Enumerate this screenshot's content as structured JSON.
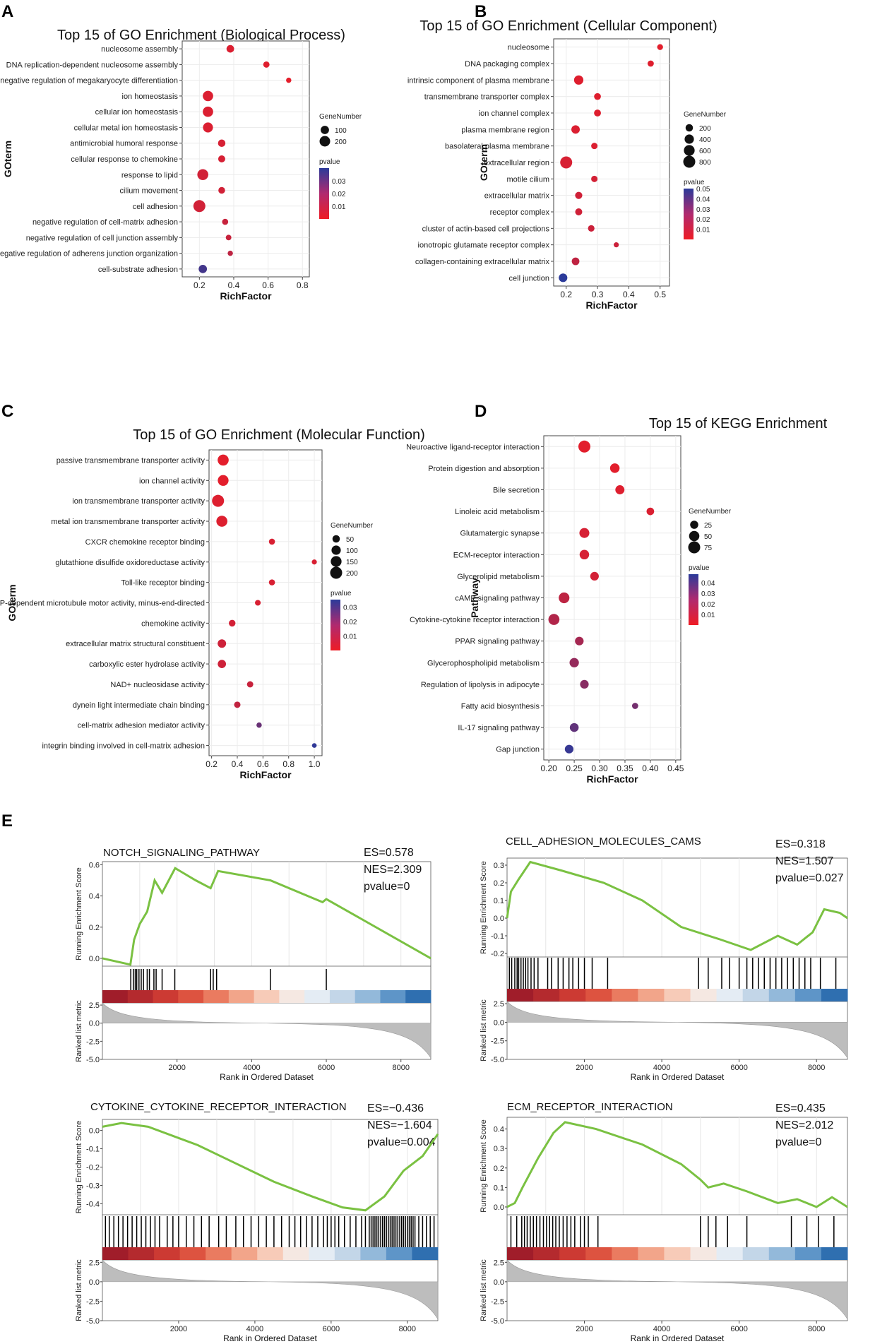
{
  "panel_labels": [
    "A",
    "B",
    "C",
    "D",
    "E"
  ],
  "dot_common": {
    "genenumber_title": "GeneNumber",
    "pvalue_title": "pvalue",
    "low_color": "#ee1c25",
    "high_color": "#2b3a9a"
  },
  "chart_data": [
    {
      "id": "A",
      "type": "scatter",
      "title": "Top 15 of GO Enrichment (Biological Process)",
      "xlabel": "RichFactor",
      "ylabel": "GOterm",
      "xlim": [
        0.1,
        0.84
      ],
      "xticks": [
        0.2,
        0.4,
        0.6,
        0.8
      ],
      "xtick_labels": [
        "0.2",
        "0.4",
        "0.6",
        "0.8"
      ],
      "size_legend": {
        "labels": [
          "100",
          "200"
        ],
        "values": [
          100,
          200
        ]
      },
      "color_legend": {
        "labels": [
          "0.03",
          "0.02",
          "0.01"
        ],
        "values": [
          0.03,
          0.02,
          0.01
        ],
        "min": 0.0,
        "max": 0.04
      },
      "terms": [
        "nucleosome assembly",
        "DNA replication-dependent nucleosome assembly",
        "negative regulation of megakaryocyte differentiation",
        "ion homeostasis",
        "cellular ion homeostasis",
        "cellular metal ion homeostasis",
        "antimicrobial humoral response",
        "cellular response to chemokine",
        "response to lipid",
        "cilium movement",
        "cell adhesion",
        "negative regulation of cell-matrix adhesion",
        "negative regulation of cell junction assembly",
        "negative regulation of adherens junction organization",
        "cell-substrate adhesion"
      ],
      "x": [
        0.38,
        0.59,
        0.72,
        0.25,
        0.25,
        0.25,
        0.33,
        0.33,
        0.22,
        0.33,
        0.2,
        0.35,
        0.37,
        0.38,
        0.22
      ],
      "gene_number": [
        75,
        40,
        20,
        190,
        190,
        170,
        70,
        60,
        220,
        50,
        280,
        35,
        25,
        20,
        100
      ],
      "pvalue": [
        0.004,
        0.003,
        0.002,
        0.004,
        0.004,
        0.004,
        0.005,
        0.005,
        0.006,
        0.006,
        0.006,
        0.008,
        0.008,
        0.01,
        0.035
      ]
    },
    {
      "id": "B",
      "type": "scatter",
      "title": "Top 15 of GO Enrichment (Cellular Component)",
      "xlabel": "RichFactor",
      "ylabel": "GOterm",
      "xlim": [
        0.16,
        0.53
      ],
      "xticks": [
        0.2,
        0.3,
        0.4,
        0.5
      ],
      "xtick_labels": [
        "0.2",
        "0.3",
        "0.4",
        "0.5"
      ],
      "size_legend": {
        "labels": [
          "200",
          "400",
          "600",
          "800"
        ],
        "values": [
          200,
          400,
          600,
          800
        ]
      },
      "color_legend": {
        "labels": [
          "0.05",
          "0.04",
          "0.03",
          "0.02",
          "0.01"
        ],
        "values": [
          0.05,
          0.04,
          0.03,
          0.02,
          0.01
        ],
        "min": 0.0,
        "max": 0.05
      },
      "terms": [
        "nucleosome",
        "DNA packaging complex",
        "intrinsic component of plasma membrane",
        "transmembrane transporter complex",
        "ion channel complex",
        "plasma membrane region",
        "basolateral plasma membrane",
        "extracellular region",
        "motile cilium",
        "extracellular matrix",
        "receptor complex",
        "cluster of actin-based cell projections",
        "ionotropic glutamate receptor complex",
        "collagen-containing extracellular matrix",
        "cell junction"
      ],
      "x": [
        0.5,
        0.47,
        0.24,
        0.3,
        0.3,
        0.23,
        0.29,
        0.2,
        0.29,
        0.24,
        0.24,
        0.28,
        0.36,
        0.23,
        0.19
      ],
      "gene_number": [
        90,
        110,
        400,
        150,
        160,
        300,
        120,
        800,
        120,
        180,
        170,
        130,
        50,
        220,
        310
      ],
      "pvalue": [
        0.003,
        0.004,
        0.004,
        0.004,
        0.004,
        0.005,
        0.005,
        0.006,
        0.007,
        0.008,
        0.008,
        0.009,
        0.009,
        0.012,
        0.05
      ]
    },
    {
      "id": "C",
      "type": "scatter",
      "title": "Top 15 of GO Enrichment (Molecular Function)",
      "xlabel": "RichFactor",
      "ylabel": "GOterm",
      "xlim": [
        0.18,
        1.06
      ],
      "xticks": [
        0.2,
        0.4,
        0.6,
        0.8,
        1.0
      ],
      "xtick_labels": [
        "0.2",
        "0.4",
        "0.6",
        "0.8",
        "1.0"
      ],
      "size_legend": {
        "labels": [
          "50",
          "100",
          "150",
          "200"
        ],
        "values": [
          50,
          100,
          150,
          200
        ]
      },
      "color_legend": {
        "labels": [
          "0.03",
          "0.02",
          "0.01"
        ],
        "values": [
          0.03,
          0.02,
          0.01
        ],
        "min": 0.0,
        "max": 0.035
      },
      "terms": [
        "passive transmembrane transporter activity",
        "ion channel activity",
        "ion transmembrane transporter activity",
        "metal ion transmembrane transporter activity",
        "CXCR chemokine receptor binding",
        "glutathione disulfide oxidoreductase activity",
        "Toll-like receptor binding",
        "ATP-dependent microtubule motor activity, minus-end-directed",
        "chemokine activity",
        "extracellular matrix structural constituent",
        "carboxylic ester hydrolase activity",
        "NAD+ nucleosidase activity",
        "dynein light intermediate chain binding",
        "cell-matrix adhesion mediator activity",
        "integrin binding involved in cell-matrix adhesion"
      ],
      "x": [
        0.29,
        0.29,
        0.25,
        0.28,
        0.67,
        1.0,
        0.67,
        0.56,
        0.36,
        0.28,
        0.28,
        0.5,
        0.4,
        0.57,
        1.0
      ],
      "gene_number": [
        160,
        150,
        200,
        160,
        25,
        12,
        25,
        20,
        35,
        75,
        70,
        28,
        30,
        15,
        8
      ],
      "pvalue": [
        0.002,
        0.002,
        0.003,
        0.003,
        0.004,
        0.004,
        0.004,
        0.004,
        0.005,
        0.006,
        0.006,
        0.007,
        0.008,
        0.024,
        0.034
      ]
    },
    {
      "id": "D",
      "type": "scatter",
      "title": "Top 15 of KEGG Enrichment",
      "xlabel": "RichFactor",
      "ylabel": "Pathway",
      "xlim": [
        0.19,
        0.46
      ],
      "xticks": [
        0.2,
        0.25,
        0.3,
        0.35,
        0.4,
        0.45
      ],
      "xtick_labels": [
        "0.20",
        "0.25",
        "0.30",
        "0.35",
        "0.40",
        "0.45"
      ],
      "size_legend": {
        "labels": [
          "25",
          "50",
          "75"
        ],
        "values": [
          25,
          50,
          75
        ]
      },
      "color_legend": {
        "labels": [
          "0.04",
          "0.03",
          "0.02",
          "0.01"
        ],
        "values": [
          0.04,
          0.03,
          0.02,
          0.01
        ],
        "min": 0.0,
        "max": 0.048
      },
      "terms": [
        "Neuroactive ligand-receptor interaction",
        "Protein digestion and absorption",
        "Bile secretion",
        "Linoleic acid metabolism",
        "Glutamatergic synapse",
        "ECM-receptor interaction",
        "Glycerolipid metabolism",
        "cAMP signaling pathway",
        "Cytokine-cytokine receptor interaction",
        "PPAR signaling pathway",
        "Glycerophospholipid metabolism",
        "Regulation of lipolysis in adipocyte",
        "Fatty acid biosynthesis",
        "IL-17 signaling pathway",
        "Gap junction"
      ],
      "x": [
        0.27,
        0.33,
        0.34,
        0.4,
        0.27,
        0.27,
        0.29,
        0.23,
        0.21,
        0.26,
        0.25,
        0.27,
        0.37,
        0.25,
        0.24
      ],
      "gene_number": [
        75,
        40,
        35,
        20,
        45,
        40,
        30,
        55,
        60,
        30,
        38,
        30,
        10,
        32,
        30
      ],
      "pvalue": [
        0.003,
        0.003,
        0.004,
        0.005,
        0.006,
        0.006,
        0.007,
        0.012,
        0.015,
        0.018,
        0.022,
        0.025,
        0.03,
        0.035,
        0.045
      ]
    }
  ],
  "gsea_common": {
    "es_axis_label": "Running Enrichment Score",
    "metric_axis_label": "Ranked list metric",
    "x_axis_label": "Rank in Ordered Dataset",
    "x_ticks": [
      2000,
      4000,
      6000,
      8000
    ],
    "x_tick_labels": [
      "2000",
      "4000",
      "6000",
      "8000"
    ],
    "x_max": 8800,
    "metric_ticks": [
      2.5,
      0.0,
      -2.5,
      -5.0
    ],
    "metric_tick_labels": [
      "2.5",
      "0.0",
      "-2.5",
      "-5.0"
    ],
    "line_color": "#7ac142",
    "hit_color": "#000000"
  },
  "gsea": [
    {
      "name": "NOTCH_SIGNALING_PATHWAY",
      "es_label": "ES=0.578",
      "nes_label": "NES=2.309",
      "pvalue_label": "pvalue=0",
      "es_ticks": [
        0.0,
        0.2,
        0.4,
        0.6
      ],
      "es_tick_labels": [
        "0.0",
        "0.2",
        "0.4",
        "0.6"
      ],
      "es_range": [
        -0.05,
        0.62
      ],
      "curve": [
        [
          0,
          0
        ],
        [
          750,
          -0.04
        ],
        [
          850,
          0.12
        ],
        [
          1000,
          0.22
        ],
        [
          1200,
          0.3
        ],
        [
          1400,
          0.5
        ],
        [
          1600,
          0.42
        ],
        [
          1950,
          0.578
        ],
        [
          2500,
          0.5
        ],
        [
          2900,
          0.45
        ],
        [
          3100,
          0.56
        ],
        [
          4500,
          0.5
        ],
        [
          5900,
          0.36
        ],
        [
          6000,
          0.38
        ],
        [
          8800,
          0.0
        ]
      ],
      "hits": [
        760,
        830,
        880,
        920,
        980,
        1040,
        1100,
        1200,
        1260,
        1380,
        1440,
        1600,
        1940,
        2900,
        2970,
        3060,
        4500,
        6000
      ]
    },
    {
      "name": "CELL_ADHESION_MOLECULES_CAMS",
      "es_label": "ES=0.318",
      "nes_label": "NES=1.507",
      "pvalue_label": "pvalue=0.027",
      "es_ticks": [
        0.3,
        0.2,
        0.1,
        0.0,
        -0.1,
        -0.2
      ],
      "es_tick_labels": [
        "0.3",
        "0.2",
        "0.1",
        "0.0",
        "-0.1",
        "-0.2"
      ],
      "es_range": [
        -0.22,
        0.34
      ],
      "curve": [
        [
          0,
          0
        ],
        [
          100,
          0.15
        ],
        [
          300,
          0.22
        ],
        [
          600,
          0.318
        ],
        [
          1400,
          0.27
        ],
        [
          2500,
          0.2
        ],
        [
          3500,
          0.1
        ],
        [
          4500,
          -0.05
        ],
        [
          5500,
          -0.12
        ],
        [
          6300,
          -0.18
        ],
        [
          7000,
          -0.1
        ],
        [
          7500,
          -0.15
        ],
        [
          7900,
          -0.08
        ],
        [
          8200,
          0.05
        ],
        [
          8600,
          0.03
        ],
        [
          8800,
          0.0
        ]
      ],
      "hits": [
        60,
        120,
        200,
        260,
        300,
        360,
        420,
        480,
        540,
        620,
        700,
        800,
        1050,
        1150,
        1320,
        1450,
        1600,
        1700,
        1850,
        2000,
        2200,
        2600,
        4950,
        5200,
        5550,
        5750,
        6000,
        6200,
        6350,
        6500,
        6650,
        6800,
        6950,
        7100,
        7250,
        7400,
        7550,
        7700,
        7850,
        8100,
        8500
      ]
    },
    {
      "name": "CYTOKINE_CYTOKINE_RECEPTOR_INTERACTION",
      "es_label": "ES=−0.436",
      "nes_label": "NES=−1.604",
      "pvalue_label": "pvalue=0.004",
      "es_ticks": [
        0.0,
        -0.1,
        -0.2,
        -0.3,
        -0.4
      ],
      "es_tick_labels": [
        "0.0",
        "-0.1",
        "-0.2",
        "-0.3",
        "-0.4"
      ],
      "es_range": [
        -0.46,
        0.06
      ],
      "curve": [
        [
          0,
          0.02
        ],
        [
          500,
          0.04
        ],
        [
          1200,
          0.02
        ],
        [
          2500,
          -0.08
        ],
        [
          3500,
          -0.18
        ],
        [
          4500,
          -0.28
        ],
        [
          5500,
          -0.36
        ],
        [
          6300,
          -0.42
        ],
        [
          6900,
          -0.436
        ],
        [
          7400,
          -0.36
        ],
        [
          7900,
          -0.22
        ],
        [
          8400,
          -0.14
        ],
        [
          8800,
          -0.02
        ]
      ],
      "hits": [
        80,
        180,
        300,
        420,
        540,
        660,
        780,
        900,
        1020,
        1140,
        1260,
        1380,
        1500,
        1700,
        1850,
        2000,
        2200,
        2400,
        2600,
        2800,
        3050,
        3250,
        3500,
        3700,
        3900,
        4100,
        4300,
        4500,
        4700,
        4900,
        5050,
        5200,
        5350,
        5500,
        5650,
        5800,
        5900,
        6000,
        6100,
        6200,
        6350,
        6500,
        6650,
        6800,
        6900,
        7000,
        7050,
        7100,
        7150,
        7200,
        7250,
        7300,
        7350,
        7400,
        7450,
        7500,
        7550,
        7600,
        7650,
        7700,
        7750,
        7800,
        7850,
        7900,
        7950,
        8000,
        8050,
        8100,
        8150,
        8200,
        8300,
        8400,
        8500,
        8600,
        8700
      ]
    },
    {
      "name": "ECM_RECEPTOR_INTERACTION",
      "es_label": "ES=0.435",
      "nes_label": "NES=2.012",
      "pvalue_label": "pvalue=0",
      "es_ticks": [
        0.4,
        0.3,
        0.2,
        0.1,
        0.0
      ],
      "es_tick_labels": [
        "0.4",
        "0.3",
        "0.2",
        "0.1",
        "0.0"
      ],
      "es_range": [
        -0.04,
        0.46
      ],
      "curve": [
        [
          0,
          0
        ],
        [
          200,
          0.02
        ],
        [
          400,
          0.1
        ],
        [
          800,
          0.25
        ],
        [
          1200,
          0.38
        ],
        [
          1500,
          0.435
        ],
        [
          2300,
          0.4
        ],
        [
          3500,
          0.32
        ],
        [
          4500,
          0.22
        ],
        [
          5000,
          0.14
        ],
        [
          5200,
          0.1
        ],
        [
          5600,
          0.12
        ],
        [
          6200,
          0.08
        ],
        [
          7000,
          0.02
        ],
        [
          7500,
          0.04
        ],
        [
          8000,
          0.0
        ],
        [
          8400,
          0.05
        ],
        [
          8800,
          0.0
        ]
      ],
      "hits": [
        100,
        250,
        380,
        450,
        520,
        600,
        680,
        760,
        850,
        940,
        1020,
        1100,
        1180,
        1260,
        1350,
        1450,
        1550,
        1650,
        1750,
        1900,
        2000,
        2100,
        2350,
        5000,
        5200,
        5400,
        5700,
        6200,
        7350,
        7750,
        8050,
        8450
      ]
    }
  ]
}
